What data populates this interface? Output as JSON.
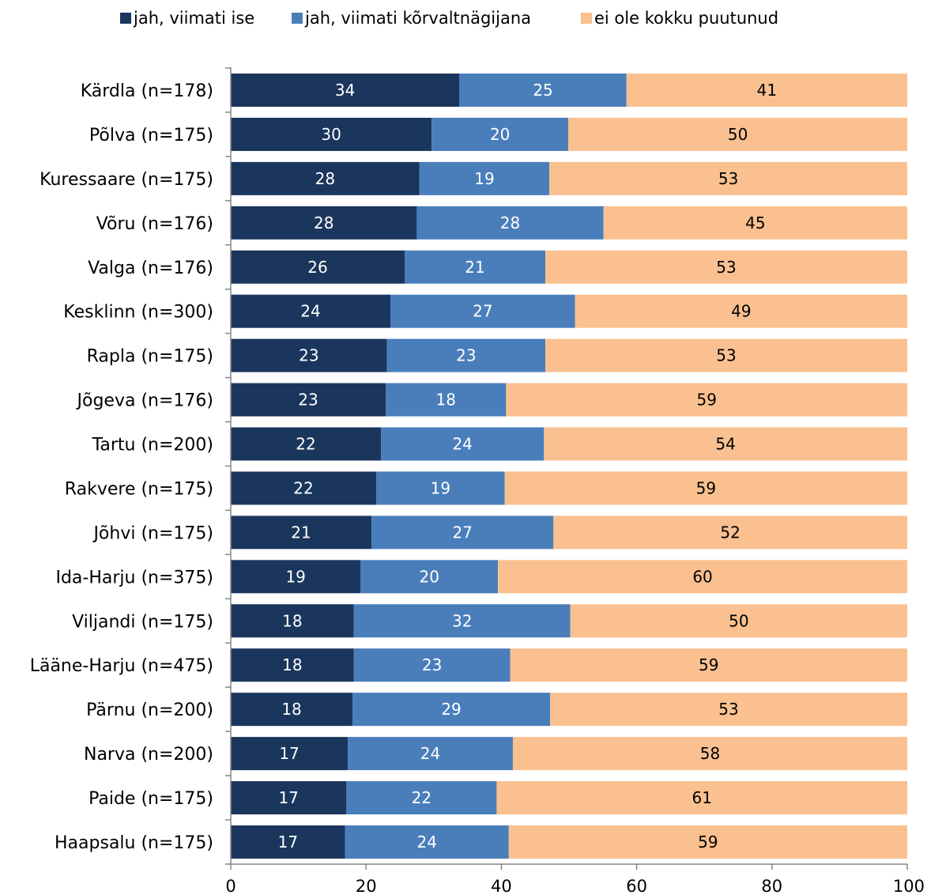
{
  "chart_data": {
    "type": "bar",
    "orientation": "horizontal",
    "stacked": true,
    "categories": [
      "Kärdla (n=178)",
      "Põlva (n=175)",
      "Kuressaare (n=175)",
      "Võru (n=176)",
      "Valga (n=176)",
      "Kesklinn (n=300)",
      "Rapla (n=175)",
      "Jõgeva (n=176)",
      "Tartu (n=200)",
      "Rakvere (n=175)",
      "Jõhvi (n=175)",
      "Ida-Harju (n=375)",
      "Viljandi (n=175)",
      "Lääne-Harju (n=475)",
      "Pärnu (n=200)",
      "Narva (n=200)",
      "Paide (n=175)",
      "Haapsalu (n=175)"
    ],
    "series": [
      {
        "name": "jah, viimati ise",
        "color": "#1b365d",
        "values": [
          33.8,
          29.7,
          27.9,
          27.5,
          25.7,
          23.6,
          23.1,
          22.9,
          22.2,
          21.5,
          20.8,
          19.2,
          18.2,
          18.2,
          18.0,
          17.3,
          17.1,
          16.9
        ],
        "labels": [
          "34",
          "30",
          "28",
          "28",
          "26",
          "24",
          "23",
          "23",
          "22",
          "22",
          "21",
          "19",
          "18",
          "18",
          "18",
          "17",
          "17",
          "17"
        ]
      },
      {
        "name": "jah, viimati kõrvaltnägijana",
        "color": "#4a7ebb",
        "values": [
          24.7,
          20.2,
          19.2,
          27.6,
          20.8,
          27.3,
          23.4,
          17.8,
          24.1,
          19.0,
          26.9,
          20.3,
          32.0,
          23.1,
          29.2,
          24.4,
          22.2,
          24.2
        ],
        "labels": [
          "25",
          "20",
          "19",
          "28",
          "21",
          "27",
          "23",
          "18",
          "24",
          "19",
          "27",
          "20",
          "32",
          "23",
          "29",
          "24",
          "22",
          "24"
        ]
      },
      {
        "name": "ei ole kokku puutunud",
        "color": "#fac090",
        "values": [
          41.5,
          50.1,
          52.9,
          44.9,
          53.5,
          49.1,
          53.5,
          59.3,
          53.7,
          59.5,
          52.3,
          60.5,
          49.8,
          58.7,
          52.8,
          58.3,
          60.7,
          58.9
        ],
        "labels": [
          "41",
          "50",
          "53",
          "45",
          "53",
          "49",
          "53",
          "59",
          "54",
          "59",
          "52",
          "60",
          "50",
          "59",
          "53",
          "58",
          "61",
          "59"
        ]
      }
    ],
    "xlim": [
      0,
      100
    ],
    "xticks": [
      "0",
      "20",
      "40",
      "60",
      "80",
      "100"
    ],
    "grid": false,
    "legend": "top",
    "title": "",
    "xlabel": "",
    "ylabel": ""
  }
}
